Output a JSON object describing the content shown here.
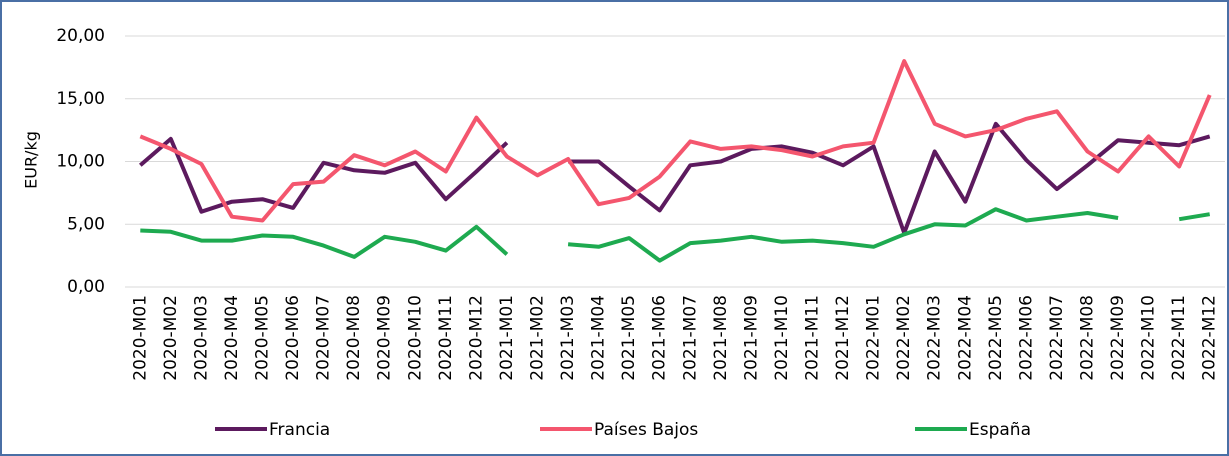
{
  "chart_data": {
    "type": "line",
    "y_label": "EUR/kg",
    "categories": [
      "2020-M01",
      "2020-M02",
      "2020-M03",
      "2020-M04",
      "2020-M05",
      "2020-M06",
      "2020-M07",
      "2020-M08",
      "2020-M09",
      "2020-M10",
      "2020-M11",
      "2020-M12",
      "2021-M01",
      "2021-M02",
      "2021-M03",
      "2021-M04",
      "2021-M05",
      "2021-M06",
      "2021-M07",
      "2021-M08",
      "2021-M09",
      "2021-M10",
      "2021-M11",
      "2021-M12",
      "2022-M01",
      "2022-M02",
      "2022-M03",
      "2022-M04",
      "2022-M05",
      "2022-M06",
      "2022-M07",
      "2022-M08",
      "2022-M09",
      "2022-M10",
      "2022-M11",
      "2022-M12"
    ],
    "series": [
      {
        "name": "Francia",
        "color": "#5c1a5e",
        "values": [
          9.7,
          11.8,
          6.0,
          6.8,
          7.0,
          6.3,
          9.9,
          9.3,
          9.1,
          9.9,
          7.0,
          9.2,
          11.5,
          null,
          10.0,
          10.0,
          8.0,
          6.1,
          9.7,
          10.0,
          11.0,
          11.2,
          10.7,
          9.7,
          11.2,
          4.3,
          10.8,
          6.8,
          13.0,
          10.1,
          7.8,
          9.7,
          11.7,
          11.5,
          11.3,
          12.0
        ]
      },
      {
        "name": "Países Bajos",
        "color": "#f4566e",
        "values": [
          12.0,
          11.0,
          9.8,
          5.6,
          5.3,
          8.2,
          8.4,
          10.5,
          9.7,
          10.8,
          9.2,
          13.5,
          10.4,
          8.9,
          10.2,
          6.6,
          7.1,
          8.8,
          11.6,
          11.0,
          11.2,
          10.9,
          10.4,
          11.2,
          11.5,
          18.0,
          13.0,
          12.0,
          12.5,
          13.4,
          14.0,
          10.8,
          9.2,
          12.0,
          9.6,
          15.3
        ]
      },
      {
        "name": "España",
        "color": "#1eaa50",
        "values": [
          4.5,
          4.4,
          3.7,
          3.7,
          4.1,
          4.0,
          3.3,
          2.4,
          4.0,
          3.6,
          2.9,
          4.8,
          2.6,
          null,
          3.4,
          3.2,
          3.9,
          2.1,
          3.5,
          3.7,
          4.0,
          3.6,
          3.7,
          3.5,
          3.2,
          4.2,
          5.0,
          4.9,
          6.2,
          5.3,
          5.6,
          5.9,
          5.5,
          null,
          5.4,
          5.8
        ]
      }
    ],
    "ylim": [
      0,
      20
    ],
    "yticks": [
      {
        "value": 0,
        "label": "0,00"
      },
      {
        "value": 5,
        "label": "5,00"
      },
      {
        "value": 10,
        "label": "10,00"
      },
      {
        "value": 15,
        "label": "15,00"
      },
      {
        "value": 20,
        "label": "20,00"
      }
    ],
    "grid": true,
    "legend": "bottom"
  }
}
